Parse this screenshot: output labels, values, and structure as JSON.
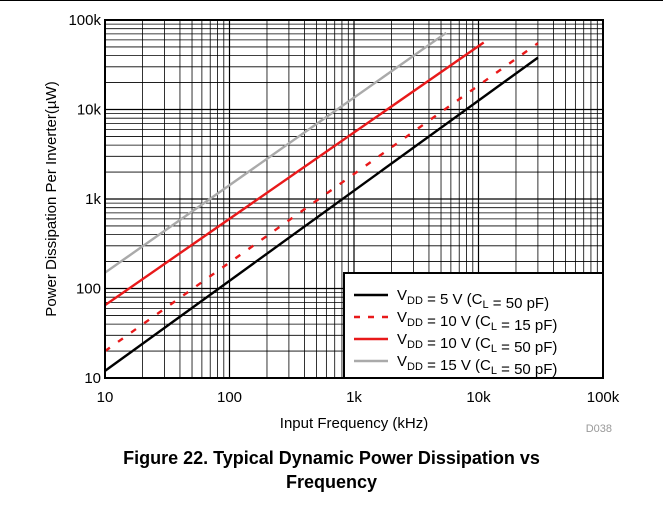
{
  "figure": {
    "caption_line1": "Figure 22. Typical Dynamic Power Dissipation vs",
    "caption_line2": "Frequency",
    "code": "D038"
  },
  "chart_data": {
    "type": "line",
    "xlabel": "Input Frequency (kHz)",
    "ylabel": "Power Dissipation Per Inverter(µW)",
    "xscale": "log",
    "yscale": "log",
    "xlim": [
      10,
      100000
    ],
    "ylim": [
      10,
      100000
    ],
    "xticks": [
      {
        "value": 10,
        "label": "10"
      },
      {
        "value": 100,
        "label": "100"
      },
      {
        "value": 1000,
        "label": "1k"
      },
      {
        "value": 10000,
        "label": "10k"
      },
      {
        "value": 100000,
        "label": "100k"
      }
    ],
    "yticks": [
      {
        "value": 10,
        "label": "10"
      },
      {
        "value": 100,
        "label": "100"
      },
      {
        "value": 1000,
        "label": "1k"
      },
      {
        "value": 10000,
        "label": "10k"
      },
      {
        "value": 100000,
        "label": "100k"
      }
    ],
    "grid": true,
    "legend_position": "bottom-right",
    "series": [
      {
        "id": "vdd5-cl50",
        "legend": {
          "main": "V",
          "sub": "DD",
          "mid": " = 5 V (C",
          "sub2": "L",
          "end": " = 50 pF)"
        },
        "color": "#000000",
        "dash": "solid",
        "x": [
          10,
          30000
        ],
        "y": [
          12,
          38000
        ]
      },
      {
        "id": "vdd10-cl15",
        "legend": {
          "main": "V",
          "sub": "DD",
          "mid": " = 10 V (C",
          "sub2": "L",
          "end": " = 15 pF)"
        },
        "color": "#e8191a",
        "dash": "dashed",
        "x": [
          10,
          30000
        ],
        "y": [
          20,
          55000
        ]
      },
      {
        "id": "vdd10-cl50",
        "legend": {
          "main": "V",
          "sub": "DD",
          "mid": " = 10 V (C",
          "sub2": "L",
          "end": " = 50 pF)"
        },
        "color": "#e8191a",
        "dash": "solid",
        "x": [
          10,
          11000
        ],
        "y": [
          65,
          56000
        ]
      },
      {
        "id": "vdd15-cl50",
        "legend": {
          "main": "V",
          "sub": "DD",
          "mid": " = 15 V (C",
          "sub2": "L",
          "end": " = 50 pF)"
        },
        "color": "#aaaaaa",
        "dash": "solid",
        "x": [
          10,
          5500
        ],
        "y": [
          150,
          72000
        ]
      }
    ]
  }
}
